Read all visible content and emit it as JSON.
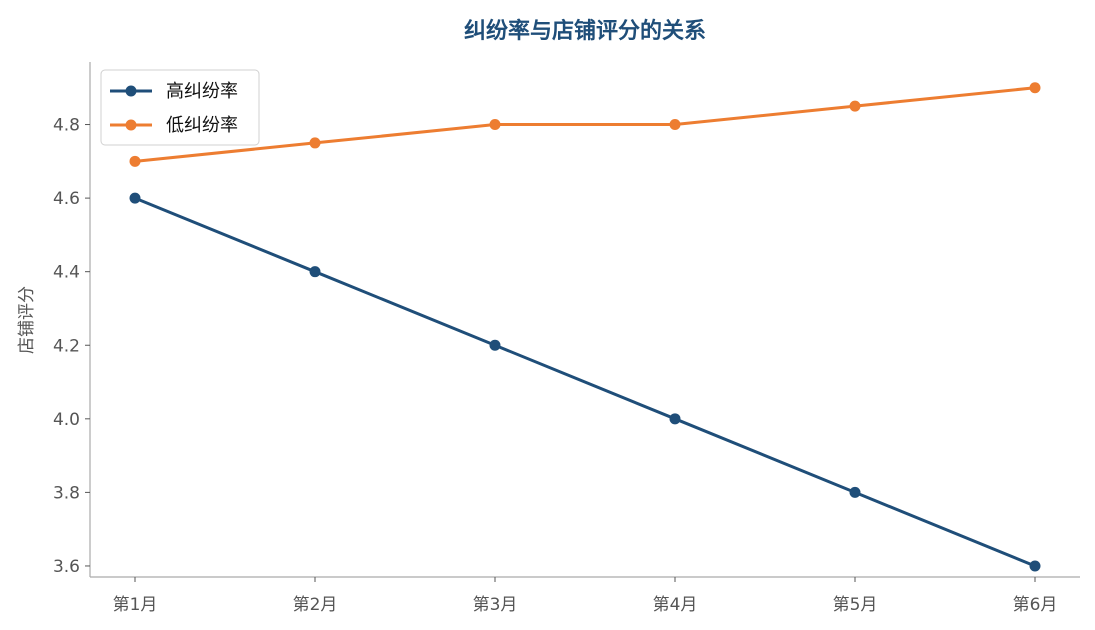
{
  "chart_data": {
    "type": "line",
    "title": "纠纷率与店铺评分的关系",
    "xlabel": "",
    "ylabel": "店铺评分",
    "categories": [
      "第1月",
      "第2月",
      "第3月",
      "第4月",
      "第5月",
      "第6月"
    ],
    "ylim": [
      3.57,
      4.97
    ],
    "yticks": [
      "3.6",
      "3.8",
      "4.0",
      "4.2",
      "4.4",
      "4.6",
      "4.8"
    ],
    "series": [
      {
        "name": "高纠纷率",
        "color": "#1f4e79",
        "values": [
          4.6,
          4.4,
          4.2,
          4.0,
          3.8,
          3.6
        ]
      },
      {
        "name": "低纠纷率",
        "color": "#ed7d31",
        "values": [
          4.7,
          4.75,
          4.8,
          4.8,
          4.85,
          4.9
        ]
      }
    ],
    "legend_position": "upper-left",
    "grid": false,
    "spines": "left-bottom"
  }
}
